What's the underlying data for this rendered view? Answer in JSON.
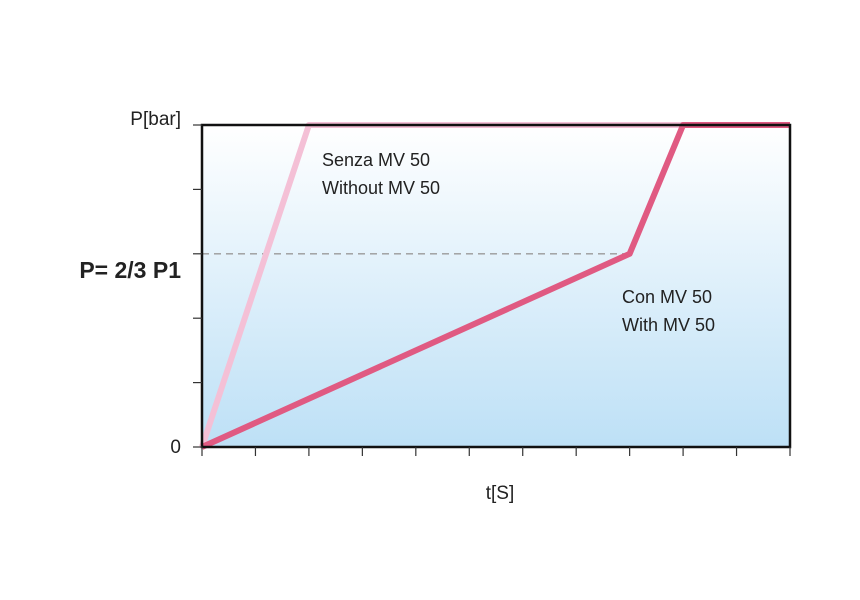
{
  "chart_data": {
    "type": "line",
    "xlabel": "t[S]",
    "ylabel": "P[bar]",
    "y_ticks": [
      {
        "value": 0,
        "label": "0"
      },
      {
        "value": 1,
        "label": ""
      },
      {
        "value": 2,
        "label": ""
      },
      {
        "value": 3,
        "label": ""
      },
      {
        "value": 4,
        "label": ""
      },
      {
        "value": 5,
        "label": ""
      }
    ],
    "x_ticks": [
      0,
      1,
      2,
      3,
      4,
      5,
      6,
      7,
      8,
      9,
      10,
      11
    ],
    "xlim": [
      0,
      11
    ],
    "ylim": [
      0,
      5
    ],
    "grid": false,
    "reference_line": {
      "y": 3,
      "x_end": 8,
      "label": "P= 2/3 P1",
      "style": "dashed"
    },
    "series": [
      {
        "name": "Senza MV 50 / Without MV 50",
        "color": "#f4c0d6",
        "points": [
          [
            0,
            0
          ],
          [
            2,
            5
          ],
          [
            11,
            5
          ]
        ],
        "label_lines": [
          "Senza MV 50",
          "Without MV 50"
        ]
      },
      {
        "name": "Con MV 50 / With MV 50",
        "color": "#e05a82",
        "points": [
          [
            0,
            0
          ],
          [
            8,
            3
          ],
          [
            9,
            5
          ],
          [
            11,
            5
          ]
        ],
        "label_lines": [
          "Con MV 50",
          "With MV 50"
        ]
      }
    ],
    "background_gradient": [
      "#ffffff",
      "#bde0f6"
    ],
    "frame_color": "#111111"
  }
}
